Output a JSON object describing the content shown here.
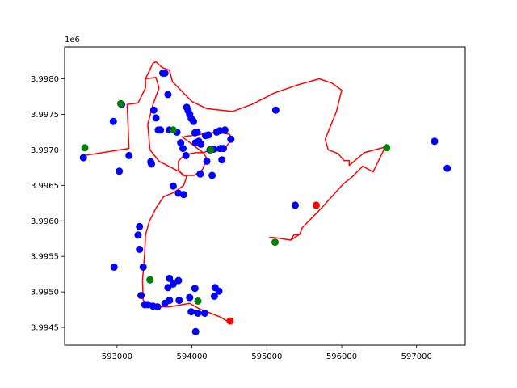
{
  "chart_data": {
    "type": "scatter",
    "title": "",
    "xlabel": "",
    "ylabel": "",
    "y_offset_label": "1e6",
    "xlim": [
      592300,
      597650
    ],
    "ylim": [
      3994250,
      3998450
    ],
    "x_scale": 1,
    "y_scale": 1000000,
    "x_ticks": [
      593000,
      594000,
      595000,
      596000,
      597000
    ],
    "x_tick_labels": [
      "593000",
      "594000",
      "595000",
      "596000",
      "597000"
    ],
    "y_ticks": [
      3994500,
      3995000,
      3995500,
      3996000,
      3996500,
      3997000,
      3997500,
      3998000
    ],
    "y_tick_labels": [
      "3.9945",
      "3.9950",
      "3.9955",
      "3.9960",
      "3.9965",
      "3.9970",
      "3.9975",
      "3.9980"
    ],
    "grid": false,
    "legend": "none",
    "colors": {
      "route": "#ff0000",
      "blue": "#0000ff",
      "green": "#008000",
      "red": "#ff0000"
    },
    "series": [
      {
        "type": "line",
        "color": "#ff0000",
        "points": [
          [
            592560,
            3996920
          ],
          [
            593160,
            3997020
          ],
          [
            593135,
            3997640
          ],
          [
            593280,
            3997660
          ],
          [
            593380,
            3997870
          ],
          [
            593380,
            3998000
          ],
          [
            593480,
            3998220
          ],
          [
            593520,
            3998240
          ],
          [
            593600,
            3998160
          ],
          [
            593700,
            3998120
          ],
          [
            593740,
            3997960
          ],
          [
            594000,
            3997680
          ],
          [
            594200,
            3997580
          ],
          [
            594540,
            3997540
          ],
          [
            594800,
            3997640
          ],
          [
            595100,
            3997800
          ],
          [
            595400,
            3997910
          ],
          [
            595700,
            3998000
          ],
          [
            595870,
            3997940
          ],
          [
            596000,
            3997840
          ],
          [
            595930,
            3997540
          ],
          [
            595780,
            3997150
          ],
          [
            595820,
            3997000
          ],
          [
            595950,
            3996950
          ],
          [
            596030,
            3996850
          ],
          [
            596100,
            3996850
          ],
          [
            596100,
            3996780
          ],
          [
            596300,
            3996960
          ],
          [
            596580,
            3997040
          ],
          [
            596420,
            3996690
          ],
          [
            596280,
            3996770
          ],
          [
            596140,
            3996620
          ],
          [
            596020,
            3996520
          ],
          [
            595730,
            3996180
          ],
          [
            595470,
            3995900
          ],
          [
            595440,
            3995810
          ],
          [
            595360,
            3995800
          ],
          [
            595320,
            3995730
          ],
          [
            595130,
            3995760
          ],
          [
            595040,
            3995770
          ],
          [
            595130,
            3995760
          ],
          [
            595320,
            3995730
          ],
          [
            595440,
            3995810
          ],
          [
            595470,
            3995900
          ],
          [
            595730,
            3996180
          ],
          [
            596020,
            3996520
          ],
          [
            596140,
            3996620
          ]
        ]
      },
      {
        "type": "line",
        "color": "#ff0000",
        "points": [
          [
            593380,
            3998000
          ],
          [
            593520,
            3998020
          ],
          [
            593560,
            3997870
          ],
          [
            593480,
            3997640
          ],
          [
            593410,
            3997360
          ],
          [
            593440,
            3997000
          ],
          [
            593560,
            3996840
          ],
          [
            593820,
            3996700
          ],
          [
            593930,
            3996620
          ],
          [
            593890,
            3996500
          ],
          [
            593760,
            3996400
          ],
          [
            593620,
            3996340
          ],
          [
            593520,
            3996180
          ],
          [
            593430,
            3995990
          ],
          [
            593380,
            3995800
          ],
          [
            593370,
            3995560
          ],
          [
            593340,
            3995160
          ],
          [
            593350,
            3994880
          ],
          [
            593480,
            3994790
          ],
          [
            593700,
            3994790
          ],
          [
            593970,
            3994840
          ],
          [
            594100,
            3994760
          ],
          [
            594250,
            3994700
          ],
          [
            594390,
            3994640
          ],
          [
            594450,
            3994600
          ],
          [
            594500,
            3994590
          ]
        ]
      },
      {
        "type": "line",
        "color": "#ff0000",
        "points": [
          [
            593860,
            3997190
          ],
          [
            593950,
            3997120
          ],
          [
            594050,
            3997040
          ],
          [
            594150,
            3996960
          ],
          [
            594200,
            3996880
          ],
          [
            594140,
            3996720
          ],
          [
            594030,
            3996640
          ],
          [
            593880,
            3996640
          ],
          [
            593820,
            3996720
          ],
          [
            593820,
            3996840
          ],
          [
            593900,
            3996930
          ],
          [
            594050,
            3996960
          ],
          [
            594150,
            3996960
          ],
          [
            594260,
            3997000
          ],
          [
            594360,
            3996980
          ],
          [
            594450,
            3997040
          ],
          [
            594540,
            3997150
          ],
          [
            594500,
            3997220
          ],
          [
            594380,
            3997240
          ],
          [
            594240,
            3997240
          ],
          [
            594120,
            3997220
          ],
          [
            594000,
            3997200
          ],
          [
            593900,
            3997190
          ]
        ]
      },
      {
        "type": "scatter",
        "color": "#0000ff",
        "points": [
          [
            592550,
            3996890
          ],
          [
            592950,
            3997400
          ],
          [
            593030,
            3996700
          ],
          [
            593060,
            3997640
          ],
          [
            593160,
            3996920
          ],
          [
            593300,
            3995920
          ],
          [
            593280,
            3995800
          ],
          [
            593300,
            3995600
          ],
          [
            593350,
            3995350
          ],
          [
            592960,
            3995350
          ],
          [
            593320,
            3994950
          ],
          [
            593370,
            3994820
          ],
          [
            593410,
            3994820
          ],
          [
            593440,
            3995170
          ],
          [
            593480,
            3994800
          ],
          [
            593540,
            3994790
          ],
          [
            593640,
            3994840
          ],
          [
            593700,
            3994880
          ],
          [
            593680,
            3995060
          ],
          [
            593700,
            3995190
          ],
          [
            593750,
            3995110
          ],
          [
            593820,
            3995160
          ],
          [
            593830,
            3994880
          ],
          [
            593970,
            3994920
          ],
          [
            593990,
            3994720
          ],
          [
            594040,
            3995050
          ],
          [
            594080,
            3994700
          ],
          [
            594170,
            3994700
          ],
          [
            594050,
            3994440
          ],
          [
            594300,
            3994940
          ],
          [
            594310,
            3995060
          ],
          [
            594360,
            3995010
          ],
          [
            593460,
            3996800
          ],
          [
            593450,
            3996830
          ],
          [
            593750,
            3996490
          ],
          [
            593820,
            3996390
          ],
          [
            593890,
            3996370
          ],
          [
            593490,
            3997560
          ],
          [
            593520,
            3997450
          ],
          [
            593550,
            3997280
          ],
          [
            593580,
            3997280
          ],
          [
            593610,
            3998080
          ],
          [
            593640,
            3998080
          ],
          [
            593680,
            3997780
          ],
          [
            593700,
            3997280
          ],
          [
            593800,
            3997250
          ],
          [
            593850,
            3997100
          ],
          [
            593880,
            3997020
          ],
          [
            593930,
            3997600
          ],
          [
            593950,
            3997550
          ],
          [
            593970,
            3997500
          ],
          [
            593990,
            3997440
          ],
          [
            594020,
            3997400
          ],
          [
            594040,
            3997240
          ],
          [
            594070,
            3997250
          ],
          [
            594050,
            3997100
          ],
          [
            594090,
            3997120
          ],
          [
            594120,
            3997080
          ],
          [
            594110,
            3996660
          ],
          [
            594220,
            3997210
          ],
          [
            594180,
            3997200
          ],
          [
            594240,
            3997000
          ],
          [
            594270,
            3996640
          ],
          [
            594290,
            3997010
          ],
          [
            594330,
            3997250
          ],
          [
            594370,
            3997270
          ],
          [
            594440,
            3997280
          ],
          [
            594520,
            3997150
          ],
          [
            594380,
            3997020
          ],
          [
            594420,
            3997020
          ],
          [
            594400,
            3996860
          ],
          [
            594200,
            3996840
          ],
          [
            593920,
            3996920
          ],
          [
            595120,
            3997560
          ],
          [
            595380,
            3996220
          ],
          [
            597240,
            3997120
          ],
          [
            597410,
            3996740
          ]
        ]
      },
      {
        "type": "scatter",
        "color": "#008000",
        "points": [
          [
            592570,
            3997030
          ],
          [
            593050,
            3997650
          ],
          [
            593750,
            3997280
          ],
          [
            594250,
            3997000
          ],
          [
            593440,
            3995170
          ],
          [
            594080,
            3994870
          ],
          [
            595110,
            3995700
          ],
          [
            596600,
            3997030
          ]
        ]
      },
      {
        "type": "scatter",
        "color": "#ff0000",
        "points": [
          [
            595660,
            3996220
          ],
          [
            594510,
            3994590
          ]
        ]
      }
    ]
  }
}
